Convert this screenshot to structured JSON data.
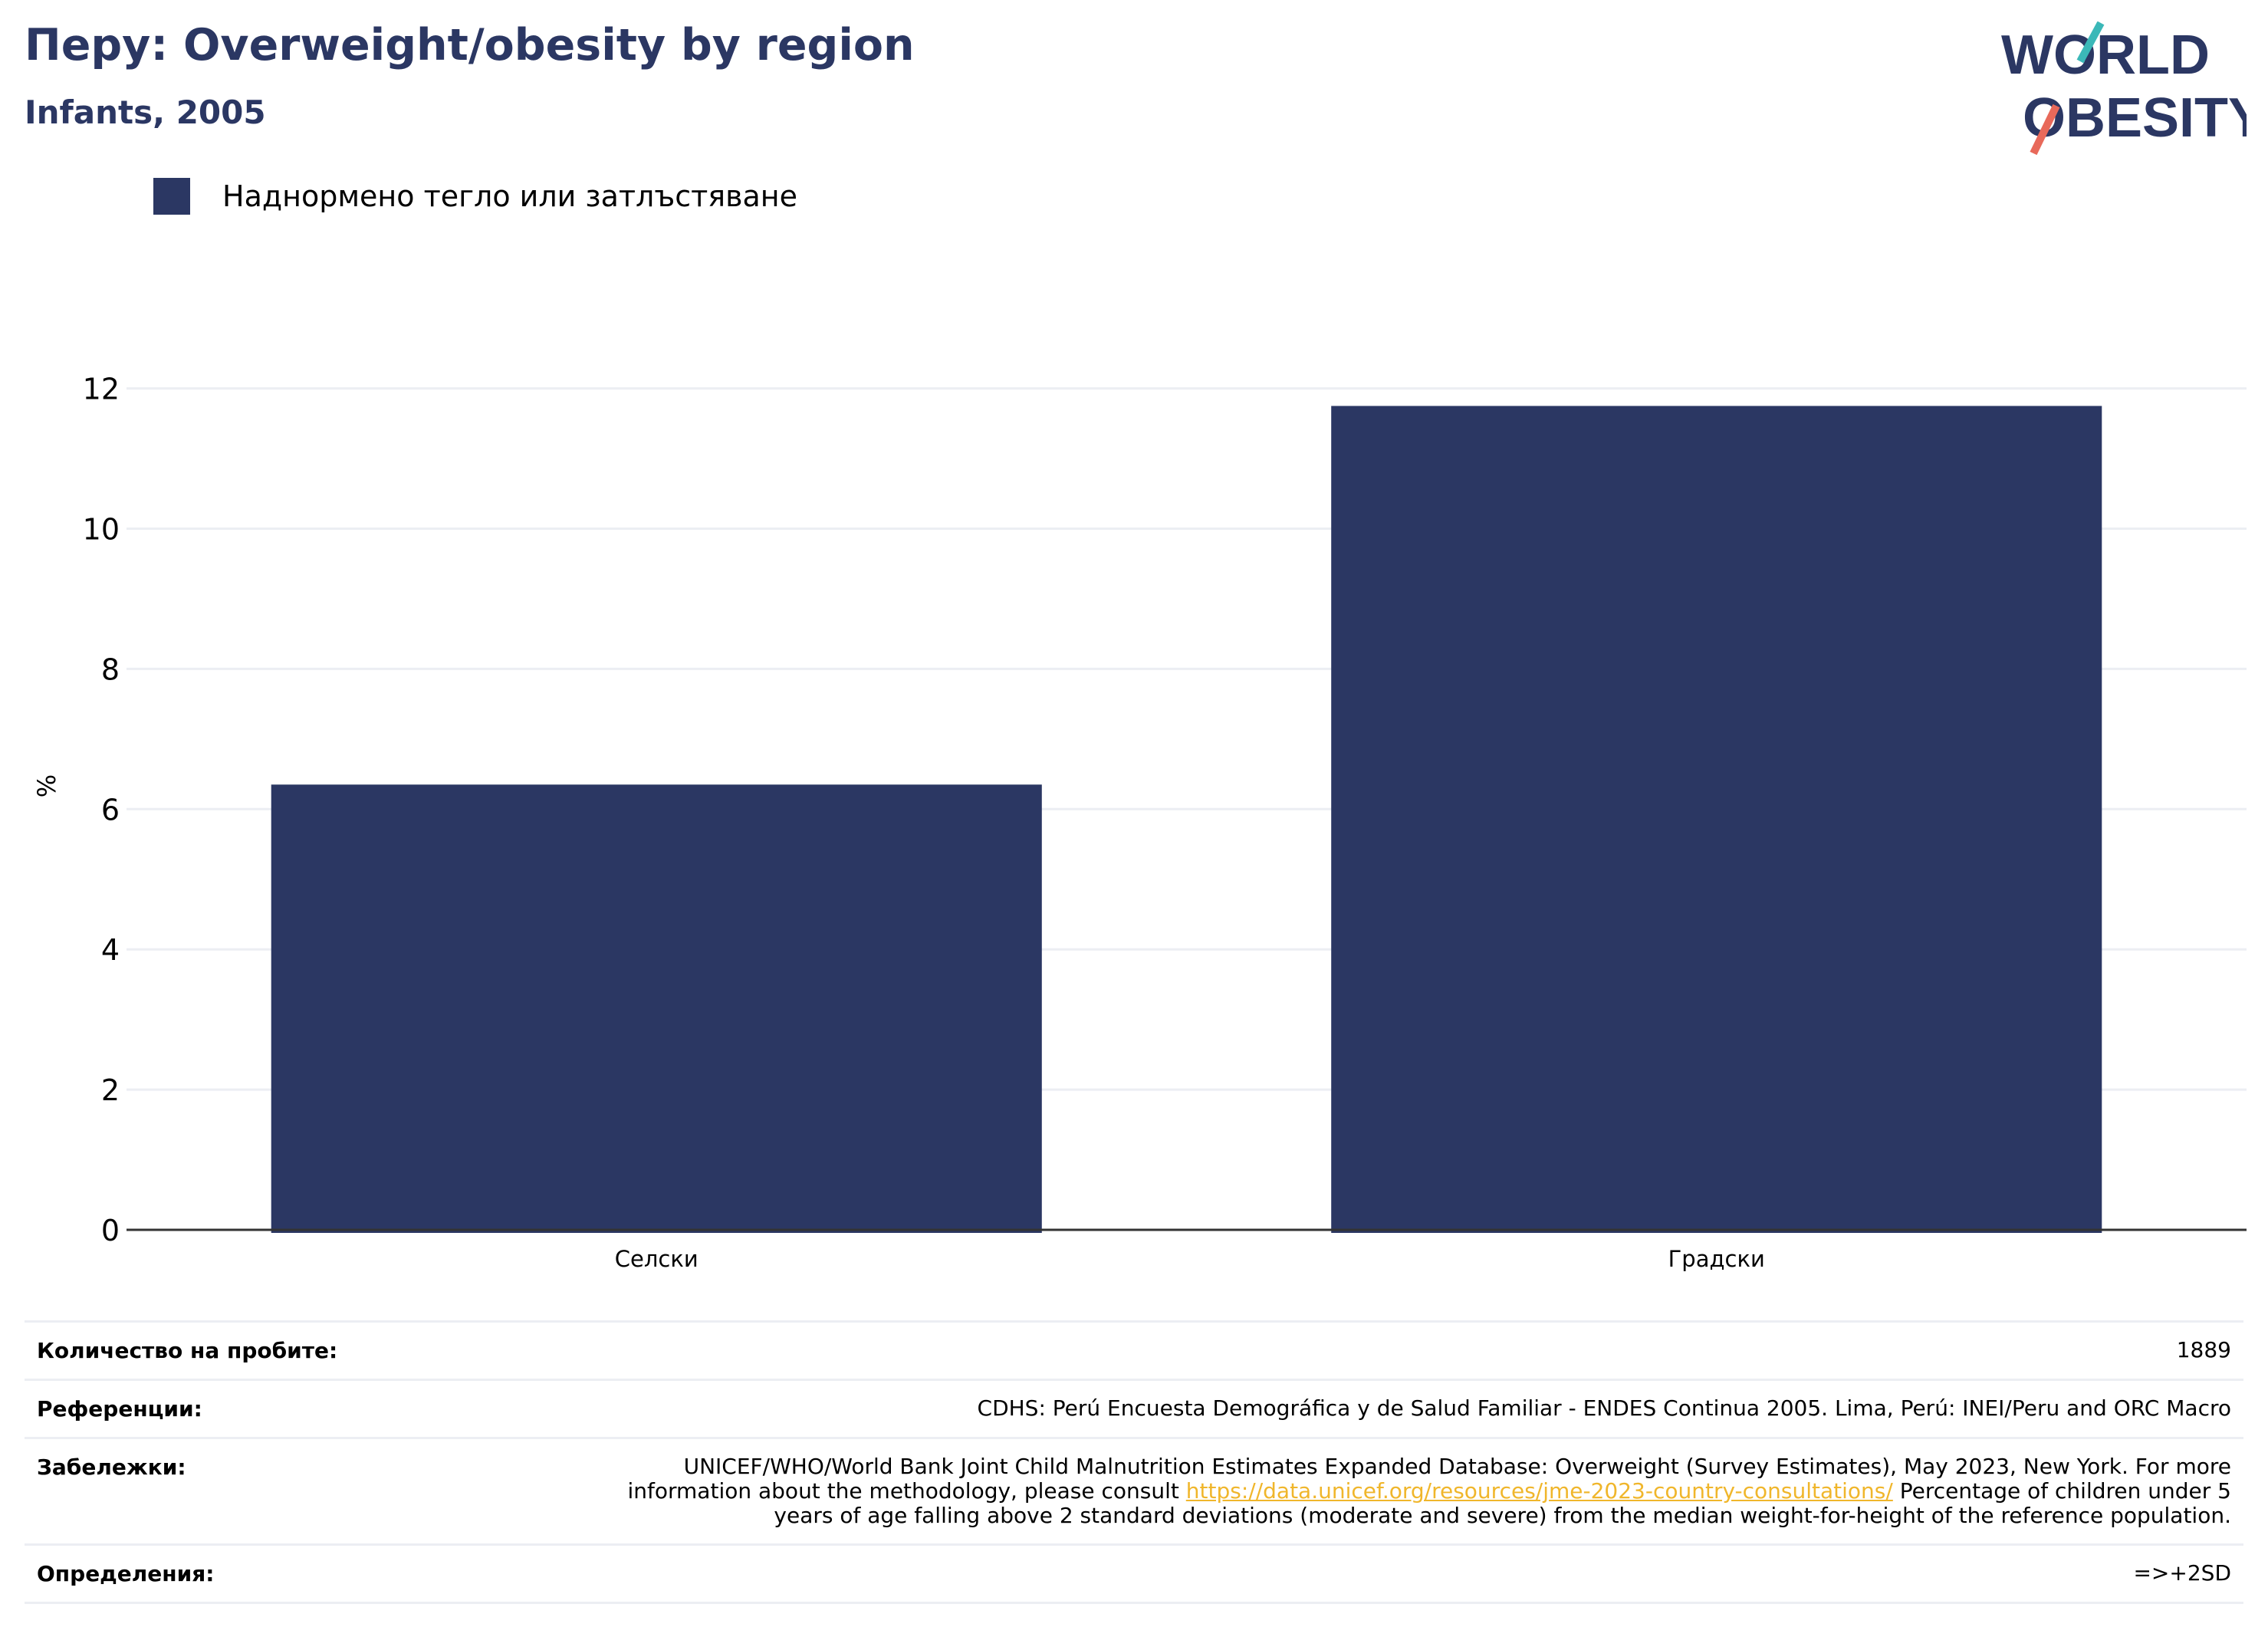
{
  "header": {
    "title": "Перу: Overweight/obesity by region",
    "subtitle": "Infants, 2005"
  },
  "logo": {
    "line1": "WORLD",
    "line2": "OBESITY"
  },
  "legend": {
    "label": "Наднормено тегло или затлъстяване"
  },
  "colors": {
    "bar": "#2b3763",
    "title": "#2b3763",
    "grid": "#eceef3",
    "link": "#f0b62b",
    "logo_teal": "#3bb8b8",
    "logo_coral": "#e8695a"
  },
  "chart_data": {
    "type": "bar",
    "categories": [
      "Селски",
      "Градски"
    ],
    "series": [
      {
        "name": "Наднормено тегло или затлъстяване",
        "values": [
          6.35,
          11.75
        ]
      }
    ],
    "ylabel": "%",
    "ylim": [
      0,
      12.4
    ],
    "yticks": [
      0,
      2,
      4,
      6,
      8,
      10,
      12
    ],
    "grid": true
  },
  "info": {
    "sample_label": "Количество на пробите:",
    "sample_value": "1889",
    "refs_label": "Референции:",
    "refs_value": "CDHS: Perú Encuesta Demográfica y de Salud Familiar - ENDES Continua 2005. Lima, Perú: INEI/Peru and ORC Macro",
    "notes_label": "Забележки:",
    "notes_before": "UNICEF/WHO/World Bank Joint Child Malnutrition Estimates Expanded Database: Overweight (Survey Estimates), May 2023, New York. For more information about the methodology, please consult ",
    "notes_link": "https://data.unicef.org/resources/jme-2023-country-consultations/",
    "notes_after": " Percentage of children under 5 years of age falling above 2 standard deviations (moderate and severe) from the median weight-for-height of the reference population.",
    "defs_label": "Определения:",
    "defs_value": "=>+2SD"
  }
}
